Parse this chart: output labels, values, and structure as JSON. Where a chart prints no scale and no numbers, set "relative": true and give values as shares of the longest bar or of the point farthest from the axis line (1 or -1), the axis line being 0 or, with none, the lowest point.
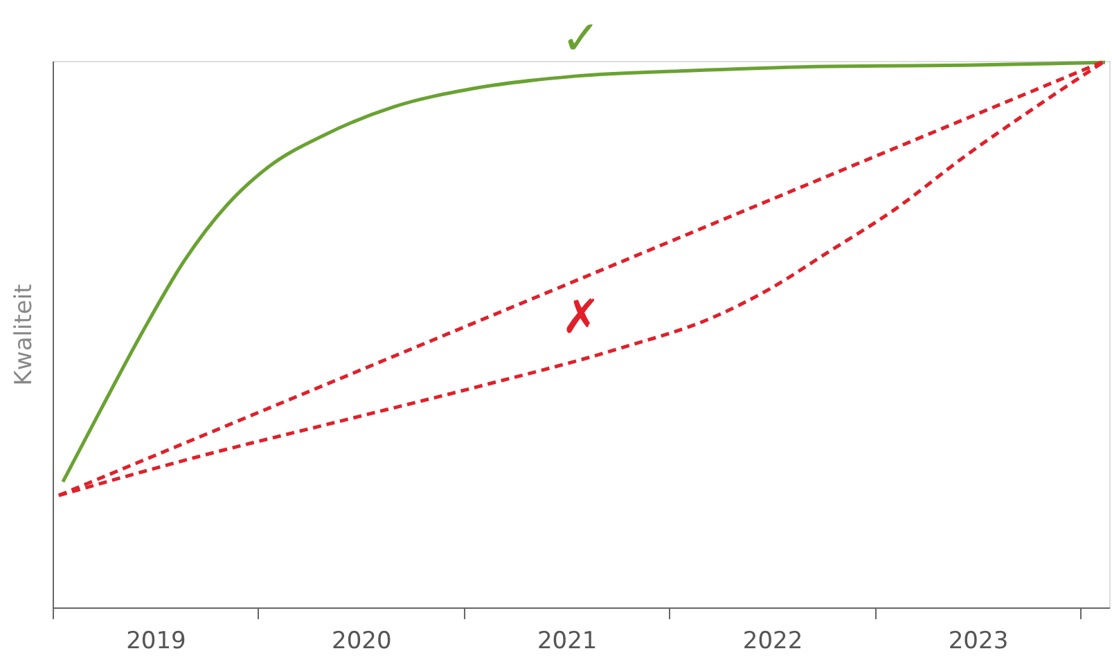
{
  "chart_data": {
    "type": "line",
    "relative": true,
    "ylabel": "Kwaliteit",
    "xlim": [
      2019,
      2024.14
    ],
    "xticks": [
      {
        "value": 2019,
        "label": null
      },
      {
        "value": 2019.5,
        "label": "2019"
      },
      {
        "value": 2020,
        "label": null
      },
      {
        "value": 2020.5,
        "label": "2020"
      },
      {
        "value": 2021,
        "label": null
      },
      {
        "value": 2021.5,
        "label": "2021"
      },
      {
        "value": 2022,
        "label": null
      },
      {
        "value": 2022.5,
        "label": "2022"
      },
      {
        "value": 2023,
        "label": null
      },
      {
        "value": 2023.5,
        "label": "2023"
      },
      {
        "value": 2024,
        "label": null
      }
    ],
    "series": [
      {
        "color": "#6aa232",
        "line_style": "solid",
        "x": [
          2019.05,
          2019.24,
          2019.44,
          2019.64,
          2019.85,
          2020.05,
          2020.32,
          2020.66,
          2021.04,
          2021.54,
          2022.09,
          2022.77,
          2023.44,
          2024.12
        ],
        "values": [
          0.23,
          0.366,
          0.506,
          0.634,
          0.737,
          0.806,
          0.864,
          0.916,
          0.949,
          0.972,
          0.982,
          0.99,
          0.992,
          0.997
        ]
      },
      {
        "color": "#e0202a",
        "line_style": "dashed",
        "x": [
          2019.03,
          2024.12
        ],
        "values": [
          0.205,
          1
        ]
      },
      {
        "color": "#e0202a",
        "line_style": "dashed",
        "x": [
          2019.03,
          2019.71,
          2020.39,
          2021.07,
          2021.75,
          2022.22,
          2022.49,
          2022.76,
          2023.1,
          2023.44,
          2023.78,
          2024.12
        ],
        "values": [
          0.205,
          0.276,
          0.34,
          0.404,
          0.473,
          0.532,
          0.583,
          0.647,
          0.729,
          0.826,
          0.915,
          1
        ]
      }
    ],
    "annotations": [
      "✓",
      "✗"
    ],
    "grid": false,
    "legend": false
  }
}
